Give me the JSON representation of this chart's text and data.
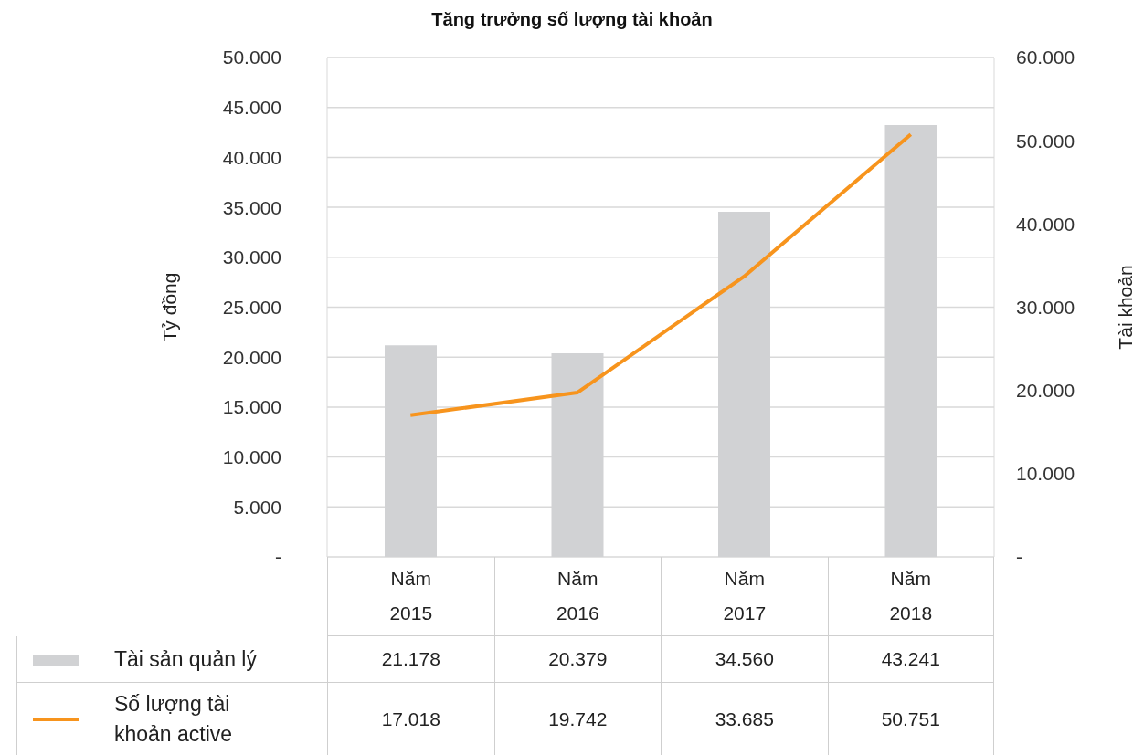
{
  "chart_data": {
    "type": "bar",
    "title": "Tăng trưởng số lượng tài khoản",
    "ylabel": "Tỷ đồng",
    "y2label": "Tài khoản",
    "categories": [
      "Năm 2015",
      "Năm 2016",
      "Năm 2017",
      "Năm 2018"
    ],
    "series": [
      {
        "name": "Tài sản quản lý",
        "color": "#d1d2d4",
        "values": [
          21178,
          20379,
          34560,
          43241
        ],
        "value_labels": [
          "21.178",
          "20.379",
          "34.560",
          "43.241"
        ]
      },
      {
        "name": "Số lượng tài khoản active",
        "type": "line",
        "axis": "y2",
        "color": "#f7941d",
        "values": [
          17018,
          19742,
          33685,
          50751
        ],
        "value_labels": [
          "17.018",
          "19.742",
          "33.685",
          "50.751"
        ]
      }
    ],
    "ylim": [
      0,
      50000
    ],
    "yticks": [
      {
        "value": 0,
        "label": "-"
      },
      {
        "value": 5000,
        "label": "5.000"
      },
      {
        "value": 10000,
        "label": "10.000"
      },
      {
        "value": 15000,
        "label": "15.000"
      },
      {
        "value": 20000,
        "label": "20.000"
      },
      {
        "value": 25000,
        "label": "25.000"
      },
      {
        "value": 30000,
        "label": "30.000"
      },
      {
        "value": 35000,
        "label": "35.000"
      },
      {
        "value": 40000,
        "label": "40.000"
      },
      {
        "value": 45000,
        "label": "45.000"
      },
      {
        "value": 50000,
        "label": "50.000"
      }
    ],
    "y2lim": [
      0,
      60000
    ],
    "y2ticks": [
      {
        "value": 0,
        "label": "-"
      },
      {
        "value": 10000,
        "label": "10.000"
      },
      {
        "value": 20000,
        "label": "20.000"
      },
      {
        "value": 30000,
        "label": "30.000"
      },
      {
        "value": 40000,
        "label": "40.000"
      },
      {
        "value": 50000,
        "label": "50.000"
      },
      {
        "value": 60000,
        "label": "60.000"
      }
    ],
    "grid": "y",
    "legend": "bottom"
  }
}
